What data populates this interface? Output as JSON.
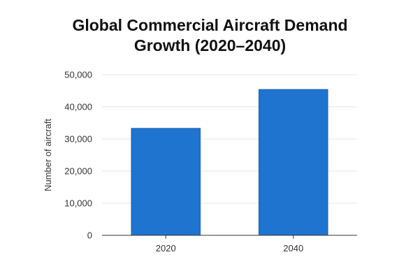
{
  "chart_data": {
    "type": "bar",
    "title_lines": [
      "Global Commercial Aircraft Demand",
      "Growth (2020–2040)"
    ],
    "xlabel": "",
    "ylabel": "Number of aircraft",
    "categories": [
      "2020",
      "2040"
    ],
    "values": [
      33300,
      45400
    ],
    "ylim": [
      0,
      50000
    ],
    "yticks": [
      0,
      10000,
      20000,
      30000,
      40000,
      50000
    ],
    "ytick_labels": [
      "0",
      "10,000",
      "20,000",
      "30,000",
      "40,000",
      "50,000"
    ],
    "grid": true,
    "legend": "none",
    "bar_color": "#1f74d0",
    "bar_edge_color": "#1760b0",
    "grid_color": "#e6e6e6",
    "axis_color": "#333333"
  }
}
